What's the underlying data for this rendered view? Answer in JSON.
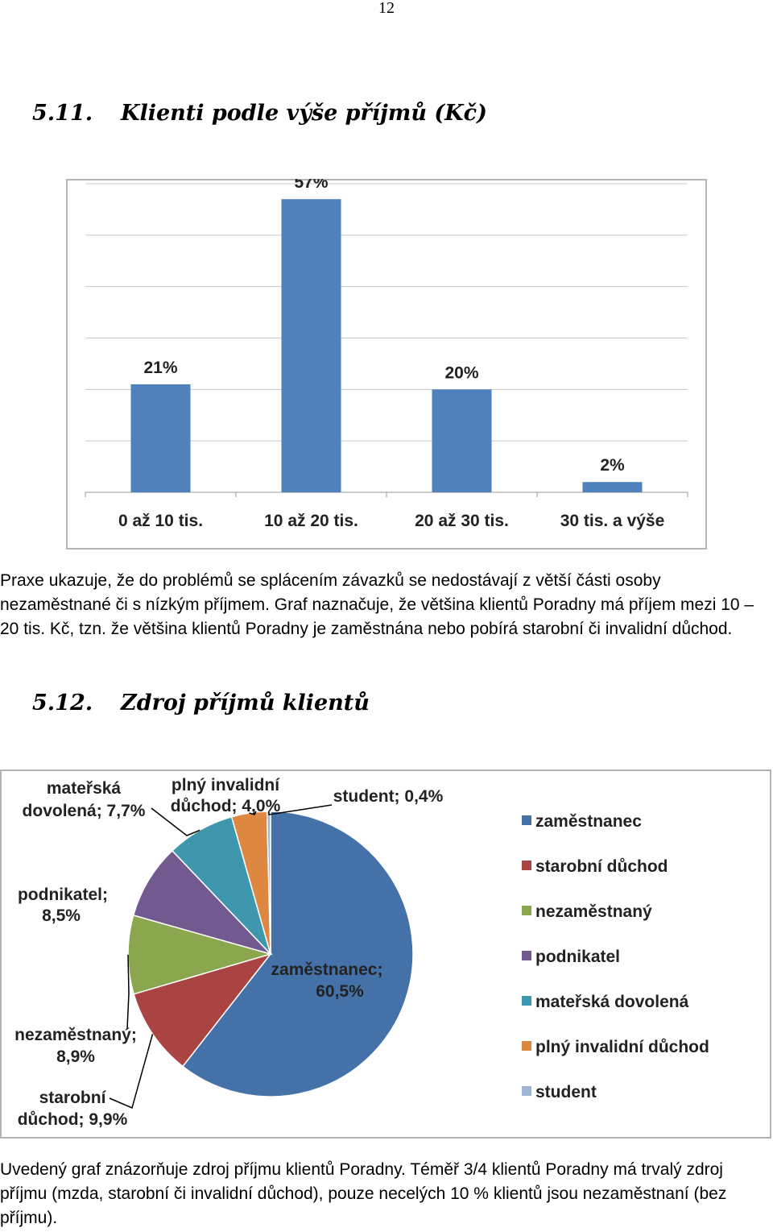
{
  "page_number": "12",
  "section1": {
    "number": "5.11.",
    "title": "Klienti podle výše příjmů (Kč)"
  },
  "paragraph1": "Praxe ukazuje, že do problémů se splácením závazků se nedostávají z větší části osoby nezaměstnané či s nízkým příjmem. Graf naznačuje, že většina klientů Poradny má příjem mezi 10 – 20 tis. Kč, tzn. že většina klientů Poradny je zaměstnána nebo pobírá starobní či invalidní důchod.",
  "section2": {
    "number": "5.12.",
    "title": "Zdroj příjmů klientů"
  },
  "paragraph2": "Uvedený graf znázorňuje zdroj příjmu klientů Poradny. Téměř 3/4 klientů Poradny má trvalý zdroj příjmu (mzda, starobní či invalidní důchod), pouze necelých 10 % klientů jsou nezaměstnaní (bez příjmu).",
  "chart_data": [
    {
      "type": "bar",
      "categories": [
        "0 až 10 tis.",
        "10 až 20 tis.",
        "20 až 30 tis.",
        "30 tis. a výše"
      ],
      "values": [
        21,
        57,
        20,
        2
      ],
      "data_labels": [
        "21%",
        "57%",
        "20%",
        "2%"
      ],
      "ylim": [
        0,
        60
      ],
      "grid": true,
      "legend": "none",
      "color": "#4f81bd"
    },
    {
      "type": "pie",
      "slices": [
        {
          "name": "zaměstnanec",
          "value": 60.5,
          "label": "zaměstnanec; 60,5%",
          "color": "#4472a8"
        },
        {
          "name": "starobní důchod",
          "value": 9.9,
          "label": "starobní důchod; 9,9%",
          "color": "#a94442"
        },
        {
          "name": "nezaměstnaný",
          "value": 8.9,
          "label": "nezaměstnaný; 8,9%",
          "color": "#8aa64e"
        },
        {
          "name": "podnikatel",
          "value": 8.5,
          "label": "podnikatel; 8,5%",
          "color": "#725a91"
        },
        {
          "name": "mateřská dovolená",
          "value": 7.7,
          "label": "mateřská dovolená; 7,7%",
          "color": "#3f97ae"
        },
        {
          "name": "plný invalidní důchod",
          "value": 4.0,
          "label": "plný invalidní důchod; 4,0%",
          "color": "#dd8741"
        },
        {
          "name": "student",
          "value": 0.4,
          "label": "student; 0,4%",
          "color": "#9fb5d6"
        }
      ],
      "legend": "right"
    }
  ]
}
